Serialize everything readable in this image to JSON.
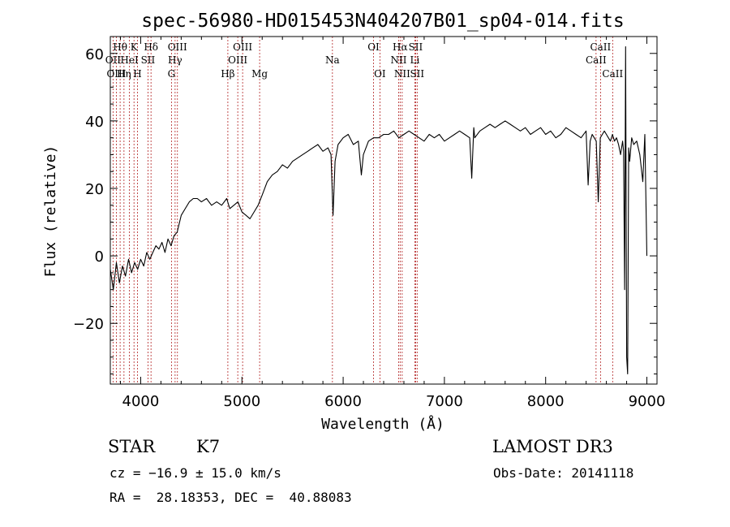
{
  "chart_data": {
    "type": "line",
    "title": "spec-56980-HD015453N404207B01_sp04-014.fits",
    "xlabel": "Wavelength (Å)",
    "ylabel": "Flux (relative)",
    "xlim": [
      3700,
      9100
    ],
    "ylim": [
      -38,
      65
    ],
    "xticks": [
      4000,
      5000,
      6000,
      7000,
      8000,
      9000
    ],
    "yticks": [
      -20,
      0,
      20,
      40,
      60
    ],
    "grid": false,
    "series": [
      {
        "color": "#000000",
        "x": [
          3700,
          3730,
          3760,
          3790,
          3820,
          3850,
          3880,
          3910,
          3940,
          3970,
          4000,
          4030,
          4060,
          4090,
          4120,
          4150,
          4180,
          4210,
          4240,
          4270,
          4300,
          4330,
          4360,
          4400,
          4440,
          4480,
          4520,
          4560,
          4600,
          4650,
          4700,
          4750,
          4800,
          4850,
          4880,
          4920,
          4960,
          5000,
          5040,
          5080,
          5120,
          5160,
          5200,
          5250,
          5300,
          5350,
          5400,
          5450,
          5500,
          5550,
          5600,
          5650,
          5700,
          5750,
          5800,
          5850,
          5880,
          5900,
          5920,
          5950,
          6000,
          6050,
          6100,
          6150,
          6180,
          6200,
          6250,
          6300,
          6350,
          6400,
          6450,
          6500,
          6550,
          6600,
          6650,
          6700,
          6750,
          6800,
          6850,
          6900,
          6950,
          7000,
          7050,
          7100,
          7150,
          7200,
          7250,
          7270,
          7290,
          7300,
          7350,
          7400,
          7450,
          7500,
          7550,
          7600,
          7650,
          7700,
          7750,
          7800,
          7850,
          7900,
          7950,
          8000,
          8050,
          8100,
          8150,
          8200,
          8250,
          8300,
          8350,
          8400,
          8420,
          8440,
          8460,
          8480,
          8500,
          8520,
          8540,
          8560,
          8580,
          8600,
          8620,
          8640,
          8660,
          8680,
          8700,
          8720,
          8740,
          8760,
          8770,
          8780,
          8790,
          8800,
          8810,
          8820,
          8830,
          8850,
          8870,
          8900,
          8930,
          8960,
          8980,
          9000
        ],
        "y": [
          -4,
          -10,
          -2,
          -8,
          -3,
          -6,
          -1,
          -5,
          -2,
          -4,
          -1,
          -3,
          1,
          -1,
          1,
          3,
          2,
          4,
          1,
          5,
          3,
          6,
          7,
          12,
          14,
          16,
          17,
          17,
          16,
          17,
          15,
          16,
          15,
          17,
          14,
          15,
          16,
          13,
          12,
          11,
          13,
          15,
          18,
          22,
          24,
          25,
          27,
          26,
          28,
          29,
          30,
          31,
          32,
          33,
          31,
          32,
          30,
          12,
          28,
          33,
          35,
          36,
          33,
          34,
          24,
          30,
          34,
          35,
          35,
          36,
          36,
          37,
          35,
          36,
          37,
          36,
          35,
          34,
          36,
          35,
          36,
          34,
          35,
          36,
          37,
          36,
          35,
          23,
          38,
          35,
          37,
          38,
          39,
          38,
          39,
          40,
          39,
          38,
          37,
          38,
          36,
          37,
          38,
          36,
          37,
          35,
          36,
          38,
          37,
          36,
          35,
          37,
          21,
          34,
          36,
          35,
          34,
          16,
          35,
          36,
          37,
          36,
          35,
          34,
          36,
          34,
          35,
          33,
          30,
          34,
          31,
          -10,
          62,
          -30,
          -35,
          32,
          28,
          35,
          33,
          34,
          30,
          22,
          36,
          0
        ]
      }
    ],
    "lines": [
      {
        "label": "Hθ",
        "x": 3797,
        "row": 1
      },
      {
        "label": "OII",
        "x": 3727,
        "row": 2
      },
      {
        "label": "OIII",
        "x": 3760,
        "row": 3
      },
      {
        "label": "Hη",
        "x": 3835,
        "row": 3
      },
      {
        "label": "HeI",
        "x": 3889,
        "row": 2
      },
      {
        "label": "K",
        "x": 3934,
        "row": 1
      },
      {
        "label": "H",
        "x": 3968,
        "row": 3
      },
      {
        "label": "SII",
        "x": 4072,
        "row": 2
      },
      {
        "label": "Hδ",
        "x": 4102,
        "row": 1
      },
      {
        "label": "G",
        "x": 4304,
        "row": 3
      },
      {
        "label": "Hγ",
        "x": 4340,
        "row": 2
      },
      {
        "label": "OIII",
        "x": 4363,
        "row": 1
      },
      {
        "label": "Hβ",
        "x": 4861,
        "row": 3
      },
      {
        "label": "OIII",
        "x": 4959,
        "row": 2
      },
      {
        "label": "OIII",
        "x": 5007,
        "row": 1
      },
      {
        "label": "Mg",
        "x": 5175,
        "row": 3
      },
      {
        "label": "Na",
        "x": 5894,
        "row": 2
      },
      {
        "label": "OI",
        "x": 6300,
        "row": 1
      },
      {
        "label": "OI",
        "x": 6363,
        "row": 3
      },
      {
        "label": "NII",
        "x": 6548,
        "row": 2
      },
      {
        "label": "Hα",
        "x": 6563,
        "row": 1
      },
      {
        "label": "NII",
        "x": 6583,
        "row": 3
      },
      {
        "label": "SII",
        "x": 6716,
        "row": 1
      },
      {
        "label": "Li",
        "x": 6708,
        "row": 2
      },
      {
        "label": "SII",
        "x": 6731,
        "row": 3
      },
      {
        "label": "CaII",
        "x": 8498,
        "row": 2
      },
      {
        "label": "CaII",
        "x": 8542,
        "row": 1
      },
      {
        "label": "CaII",
        "x": 8662,
        "row": 3
      }
    ]
  },
  "info": {
    "object_class": "STAR",
    "subclass": "K7",
    "survey": "LAMOST DR3",
    "redshift": "cz = −16.9 ± 15.0 km/s",
    "obs_date": "Obs-Date: 20141118",
    "coords": "RA =  28.18353, DEC =  40.88083"
  }
}
